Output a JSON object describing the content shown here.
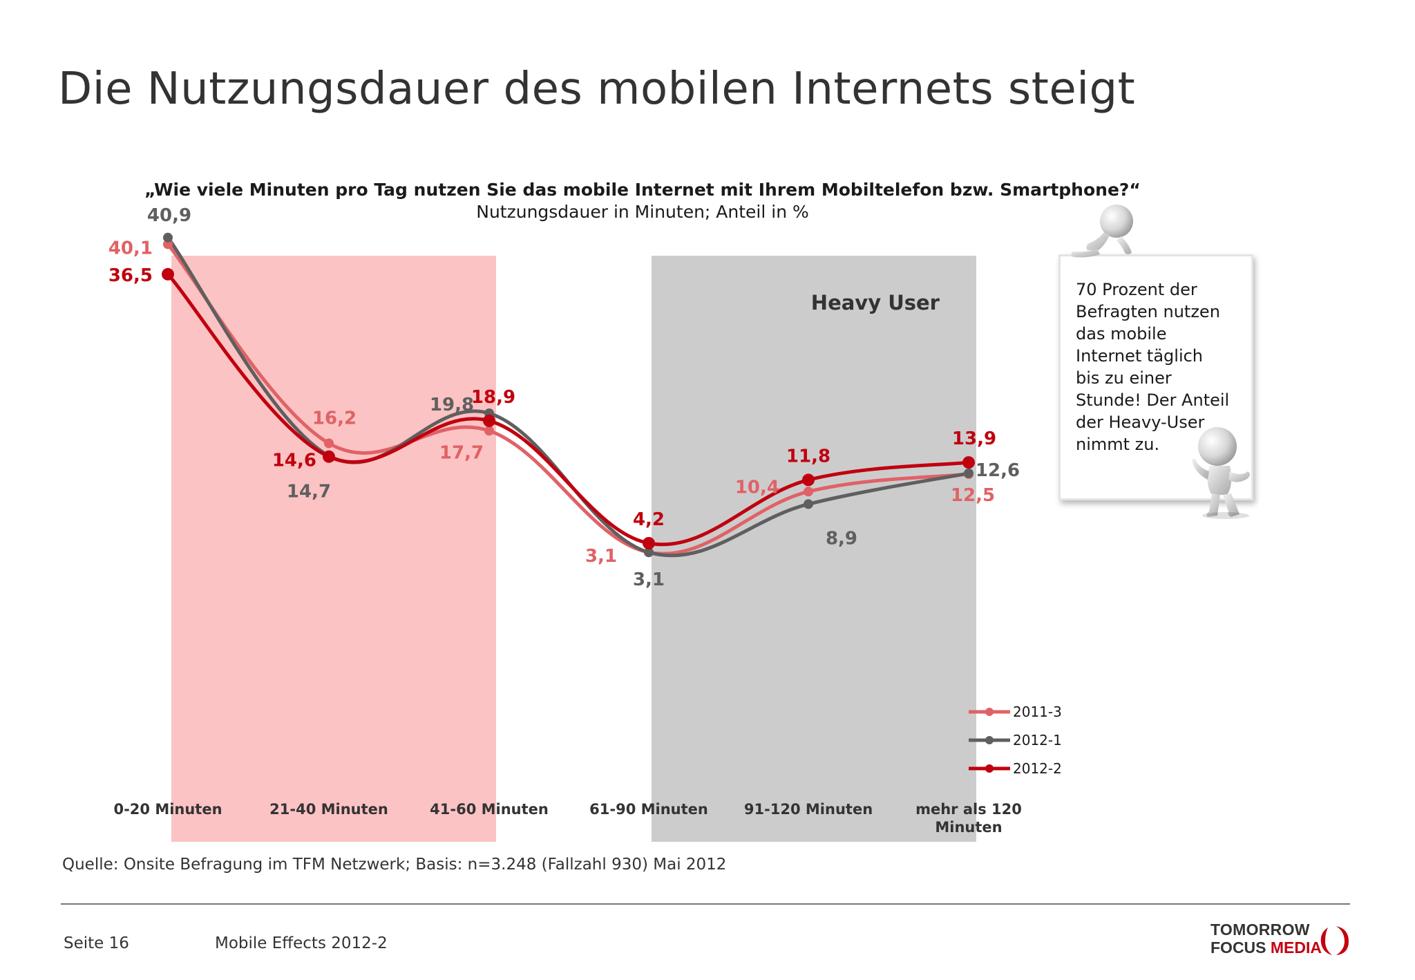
{
  "title": "Die Nutzungsdauer des mobilen Internets steigt",
  "chart_data": {
    "type": "line",
    "title": "„Wie viele Minuten pro Tag nutzen Sie das mobile Internet mit Ihrem Mobiltelefon bzw. Smartphone?“",
    "subtitle": "Nutzungsdauer in Minuten; Anteil in %",
    "categories": [
      "0-20 Minuten",
      "21-40 Minuten",
      "41-60 Minuten",
      "61-90 Minuten",
      "91-120 Minuten",
      "mehr als 120 Minuten"
    ],
    "series": [
      {
        "name": "2011-3",
        "color": "#e06266",
        "values": [
          40.1,
          16.2,
          17.7,
          3.1,
          10.4,
          12.5
        ],
        "labels": [
          "40,1",
          "16,2",
          "17,7",
          "3,1",
          "10,4",
          "12,5"
        ]
      },
      {
        "name": "2012-1",
        "color": "#5f5f5f",
        "values": [
          40.9,
          14.7,
          19.8,
          3.1,
          8.9,
          12.6
        ],
        "labels": [
          "40,9",
          "14,7",
          "19,8",
          "3,1",
          "8,9",
          "12,6"
        ]
      },
      {
        "name": "2012-2",
        "color": "#c0000e",
        "values": [
          36.5,
          14.6,
          18.9,
          4.2,
          11.8,
          13.9
        ],
        "labels": [
          "36,5",
          "14,6",
          "18,9",
          "4,2",
          "11,8",
          "13,9"
        ]
      }
    ],
    "highlight_bands": [
      {
        "from_category": "21-40 Minuten",
        "to_category": "41-60 Minuten",
        "color": "#fcc3c4",
        "label": ""
      },
      {
        "from_category": "61-90 Minuten",
        "to_category": "91-120 Minuten",
        "color": "#cdcccd",
        "label": "Heavy User"
      }
    ],
    "legend": "right",
    "grid": false
  },
  "callout": {
    "text_lines": [
      "70 Prozent der",
      "Befragten nutzen",
      "das mobile",
      "Internet täglich",
      "bis zu einer",
      "Stunde! Der Anteil",
      "der Heavy-User",
      "nimmt zu."
    ]
  },
  "source": "Quelle: Onsite Befragung im TFM Netzwerk; Basis: n=3.248 (Fallzahl 930) Mai 2012",
  "footer": {
    "page": "Seite 16",
    "study": "Mobile Effects 2012-2"
  },
  "logo": {
    "line1": "TOMORROW",
    "line2_part1": "FOCUS",
    "line2_part2": "MEDIA"
  }
}
